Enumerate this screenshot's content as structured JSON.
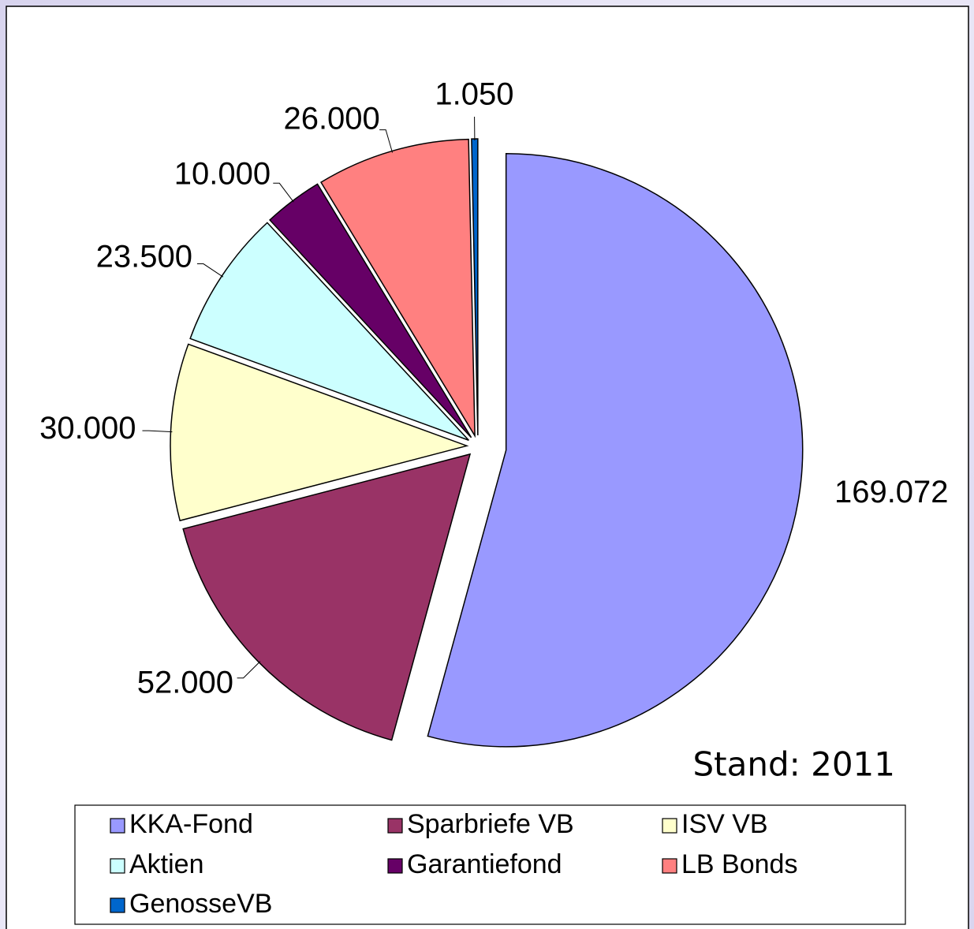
{
  "chart_data": {
    "type": "pie",
    "categories": [
      "KKA-Fond",
      "Sparbriefe VB",
      "ISV VB",
      "Aktien",
      "Garantiefond",
      "LB Bonds",
      "GenosseVB"
    ],
    "values": [
      169072,
      52000,
      30000,
      23500,
      10000,
      26000,
      1050
    ],
    "value_labels": [
      "169.072",
      "52.000",
      "30.000",
      "23.500",
      "10.000",
      "26.000",
      "1.050"
    ],
    "colors": [
      "#9999ff",
      "#993366",
      "#ffffcc",
      "#ccffff",
      "#660066",
      "#ff8080",
      "#0066cc"
    ],
    "annotation": "Stand: 2011",
    "legend": "bottom"
  }
}
